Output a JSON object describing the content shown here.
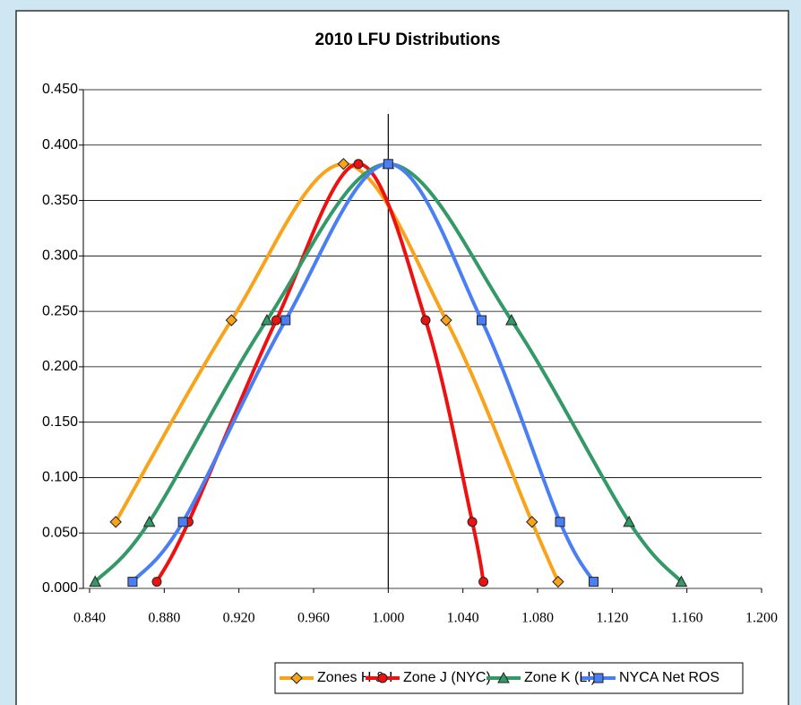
{
  "chart_data": {
    "type": "line",
    "title": "2010 LFU Distributions",
    "xlim": [
      0.84,
      1.2
    ],
    "xticks": [
      {
        "value": 0.84,
        "label": "0.840"
      },
      {
        "value": 0.88,
        "label": "0.880"
      },
      {
        "value": 0.92,
        "label": "0.920"
      },
      {
        "value": 0.96,
        "label": "0.960"
      },
      {
        "value": 1.0,
        "label": "1.000"
      },
      {
        "value": 1.04,
        "label": "1.040"
      },
      {
        "value": 1.08,
        "label": "1.080"
      },
      {
        "value": 1.12,
        "label": "1.120"
      },
      {
        "value": 1.16,
        "label": "1.160"
      },
      {
        "value": 1.2,
        "label": "1.200"
      }
    ],
    "ylim": [
      0,
      0.45
    ],
    "yticks": [
      {
        "value": 0,
        "label": "0.000"
      },
      {
        "value": 0.05,
        "label": "0.050"
      },
      {
        "value": 0.1,
        "label": "0.100"
      },
      {
        "value": 0.15,
        "label": "0.150"
      },
      {
        "value": 0.2,
        "label": "0.200"
      },
      {
        "value": 0.25,
        "label": "0.250"
      },
      {
        "value": 0.3,
        "label": "0.300"
      },
      {
        "value": 0.35,
        "label": "0.350"
      },
      {
        "value": 0.4,
        "label": "0.400"
      },
      {
        "value": 0.45,
        "label": "0.450"
      }
    ],
    "grid": true,
    "ref_line_x": 1.0,
    "legend": "bottom",
    "series": [
      {
        "name": "Zones H & I",
        "color": "#f9a31b",
        "marker": "diamond",
        "x": [
          0.854,
          0.916,
          0.976,
          1.031,
          1.077,
          1.091
        ],
        "values": [
          0.06,
          0.242,
          0.383,
          0.242,
          0.06,
          0.006
        ]
      },
      {
        "name": "Zone J (NYC)",
        "color": "#ee1111",
        "marker": "circle",
        "x": [
          0.876,
          0.893,
          0.94,
          0.984,
          1.02,
          1.045,
          1.051
        ],
        "values": [
          0.006,
          0.06,
          0.242,
          0.383,
          0.242,
          0.06,
          0.006
        ]
      },
      {
        "name": "Zone K (LI)",
        "color": "#339966",
        "marker": "triangle",
        "x": [
          0.843,
          0.872,
          0.935,
          1.0,
          1.066,
          1.129,
          1.157
        ],
        "values": [
          0.006,
          0.06,
          0.242,
          0.383,
          0.242,
          0.06,
          0.006
        ]
      },
      {
        "name": "NYCA Net ROS",
        "color": "#4a7ef5",
        "marker": "square",
        "x": [
          0.863,
          0.89,
          0.945,
          1.0,
          1.05,
          1.092,
          1.11
        ],
        "values": [
          0.006,
          0.06,
          0.242,
          0.383,
          0.242,
          0.06,
          0.006
        ]
      }
    ]
  }
}
